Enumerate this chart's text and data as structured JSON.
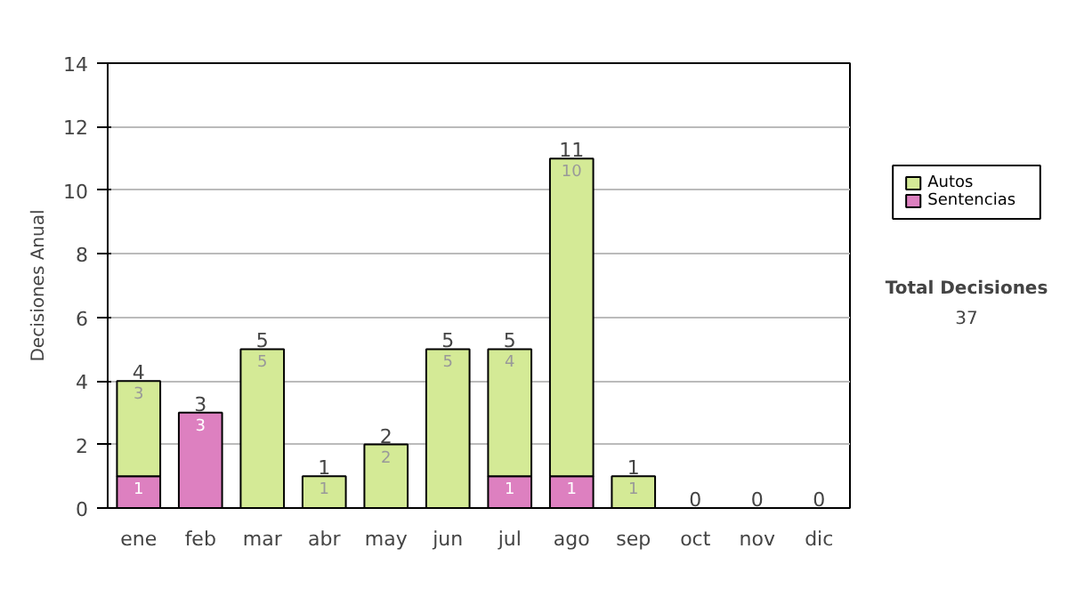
{
  "chart_data": {
    "type": "bar",
    "stacked": true,
    "ylabel": "Decisiones Anual",
    "categories": [
      "ene",
      "feb",
      "mar",
      "abr",
      "may",
      "jun",
      "jul",
      "ago",
      "sep",
      "oct",
      "nov",
      "dic"
    ],
    "series": [
      {
        "name": "Sentencias",
        "color": "#dd80c0",
        "values": [
          1,
          3,
          0,
          0,
          0,
          0,
          1,
          1,
          0,
          0,
          0,
          0
        ],
        "value_labels": [
          "1",
          "3",
          null,
          null,
          null,
          null,
          "1",
          "1",
          null,
          null,
          null,
          null
        ]
      },
      {
        "name": "Autos",
        "color": "#d4ea96",
        "values": [
          3,
          0,
          5,
          1,
          2,
          5,
          4,
          10,
          1,
          0,
          0,
          0
        ],
        "value_labels": [
          "3",
          null,
          "5",
          "1",
          "2",
          "5",
          "4",
          "10",
          "1",
          null,
          null,
          null
        ]
      }
    ],
    "totals": [
      "4",
      "3",
      "5",
      "1",
      "2",
      "5",
      "5",
      "11",
      "1",
      "0",
      "0",
      "0"
    ],
    "ylim": [
      0,
      14
    ],
    "yticks": [
      0,
      2,
      4,
      6,
      8,
      10,
      12,
      14
    ],
    "grid": "y",
    "legend": "right",
    "annotations": [
      "Total Decisiones",
      "37"
    ]
  }
}
